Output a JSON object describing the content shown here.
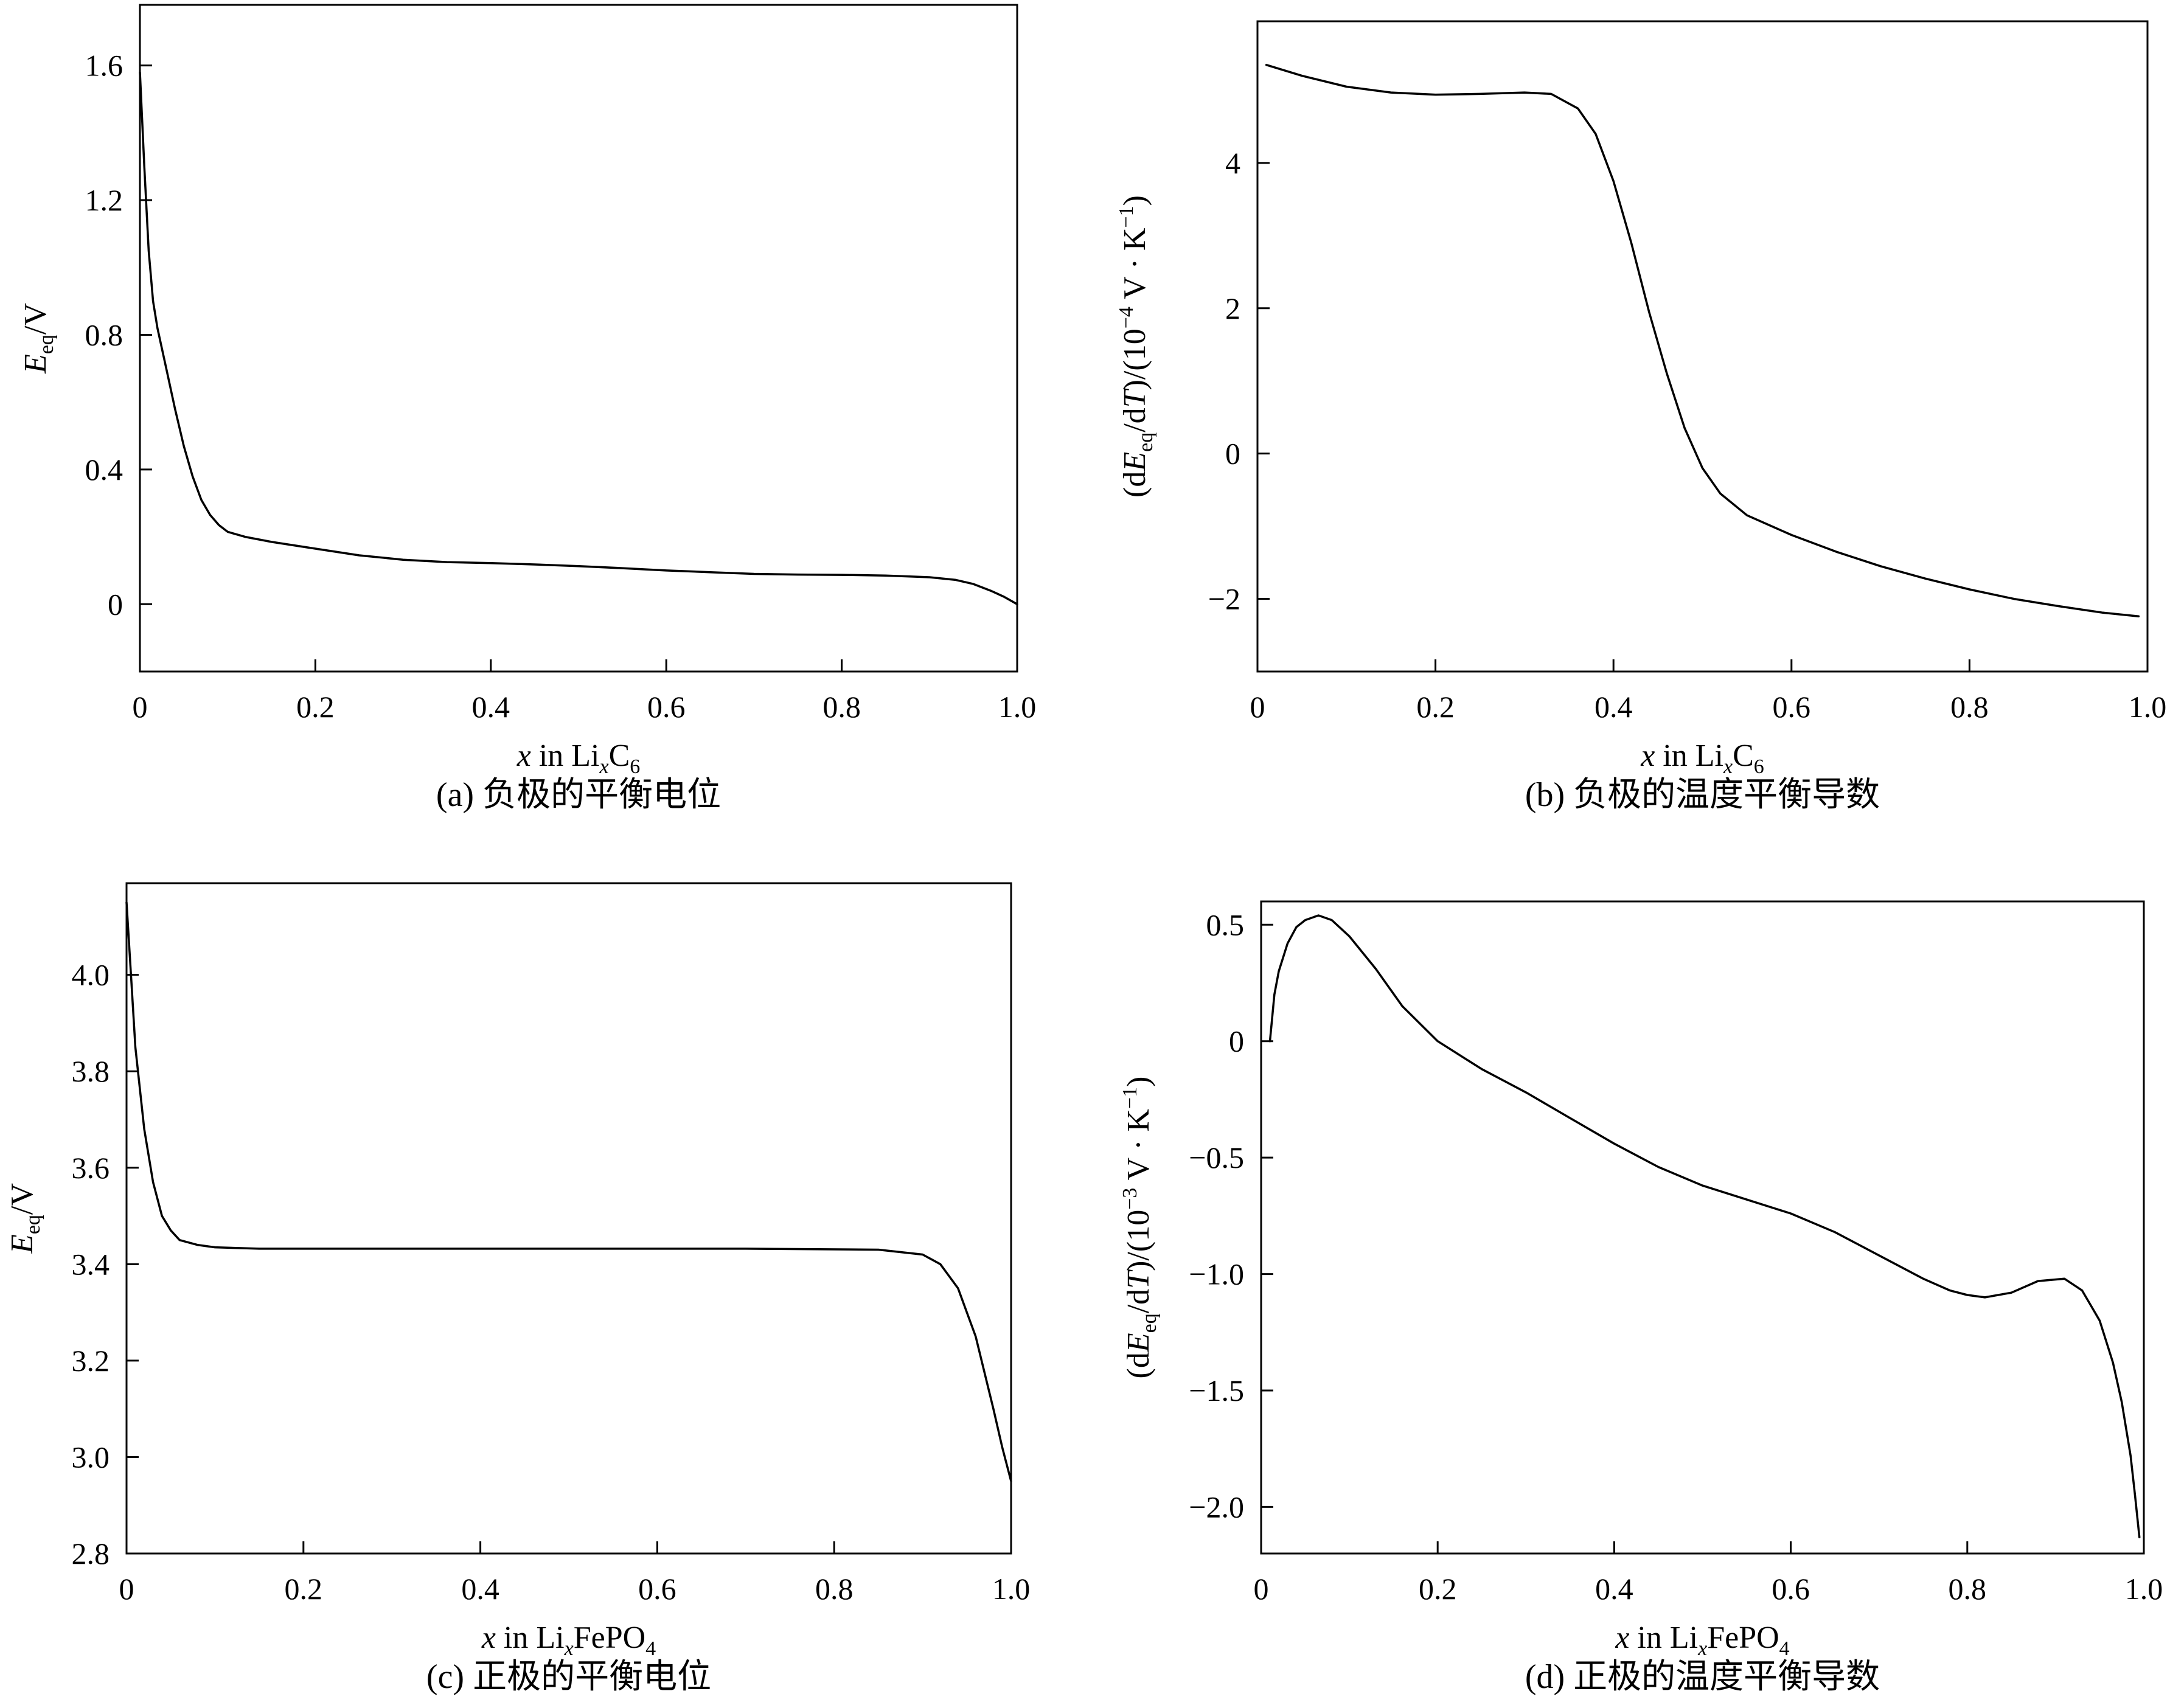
{
  "chart_data": [
    {
      "id": "a",
      "type": "line",
      "caption": "(a) 负极的平衡电位",
      "xlabel": {
        "italic": "x",
        "pre": " in Li",
        "sub": "x",
        "post": "C",
        "sub2": "6"
      },
      "ylabel": {
        "main": "E",
        "sub": "eq",
        "post": "/V"
      },
      "xlim": [
        0,
        1.0
      ],
      "ylim": [
        -0.2,
        1.78
      ],
      "xticks": [
        0,
        0.2,
        0.4,
        0.6,
        0.8,
        1.0
      ],
      "xtick_labels": [
        "0",
        "0.2",
        "0.4",
        "0.6",
        "0.8",
        "1.0"
      ],
      "yticks": [
        0,
        0.4,
        0.8,
        1.2,
        1.6
      ],
      "ytick_labels": [
        "0",
        "0.4",
        "0.8",
        "1.2",
        "1.6"
      ],
      "series": [
        {
          "x": [
            0.0,
            0.005,
            0.01,
            0.015,
            0.02,
            0.03,
            0.04,
            0.05,
            0.06,
            0.07,
            0.08,
            0.09,
            0.1,
            0.12,
            0.15,
            0.2,
            0.25,
            0.3,
            0.35,
            0.4,
            0.45,
            0.5,
            0.55,
            0.6,
            0.65,
            0.7,
            0.75,
            0.8,
            0.85,
            0.9,
            0.93,
            0.95,
            0.97,
            0.985,
            1.0
          ],
          "y": [
            1.58,
            1.3,
            1.05,
            0.9,
            0.82,
            0.7,
            0.58,
            0.47,
            0.38,
            0.31,
            0.265,
            0.235,
            0.215,
            0.2,
            0.185,
            0.165,
            0.145,
            0.132,
            0.125,
            0.122,
            0.118,
            0.113,
            0.107,
            0.1,
            0.095,
            0.09,
            0.088,
            0.087,
            0.085,
            0.08,
            0.072,
            0.06,
            0.04,
            0.022,
            0.0
          ]
        }
      ]
    },
    {
      "id": "b",
      "type": "line",
      "caption": "(b) 负极的温度平衡导数",
      "xlabel": {
        "italic": "x",
        "pre": " in Li",
        "sub": "x",
        "post": "C",
        "sub2": "6"
      },
      "ylabel": {
        "text": "(dE",
        "sub": "eq",
        "mid": "/dT)/(10",
        "sup": "−4",
        "post": " V · K",
        "sup2": "−1",
        "end": ")"
      },
      "xlim": [
        0,
        1.0
      ],
      "ylim": [
        -3.0,
        5.95
      ],
      "xticks": [
        0,
        0.2,
        0.4,
        0.6,
        0.8,
        1.0
      ],
      "xtick_labels": [
        "0",
        "0.2",
        "0.4",
        "0.6",
        "0.8",
        "1.0"
      ],
      "yticks": [
        -2,
        0,
        2,
        4
      ],
      "ytick_labels": [
        "−2",
        "0",
        "2",
        "4"
      ],
      "series": [
        {
          "x": [
            0.01,
            0.05,
            0.1,
            0.15,
            0.2,
            0.25,
            0.3,
            0.33,
            0.36,
            0.38,
            0.4,
            0.42,
            0.44,
            0.46,
            0.48,
            0.5,
            0.52,
            0.55,
            0.6,
            0.65,
            0.7,
            0.75,
            0.8,
            0.85,
            0.9,
            0.95,
            0.99
          ],
          "y": [
            5.35,
            5.2,
            5.05,
            4.97,
            4.94,
            4.95,
            4.97,
            4.95,
            4.75,
            4.4,
            3.75,
            2.9,
            1.95,
            1.1,
            0.35,
            -0.2,
            -0.55,
            -0.85,
            -1.12,
            -1.35,
            -1.55,
            -1.72,
            -1.87,
            -2.0,
            -2.1,
            -2.19,
            -2.24
          ]
        }
      ]
    },
    {
      "id": "c",
      "type": "line",
      "caption": "(c) 正极的平衡电位",
      "xlabel": {
        "italic": "x",
        "pre": " in Li",
        "sub": "x",
        "post": "FePO",
        "sub2": "4"
      },
      "ylabel": {
        "main": "E",
        "sub": "eq",
        "post": "/V"
      },
      "xlim": [
        0,
        1.0
      ],
      "ylim": [
        2.8,
        4.19
      ],
      "xticks": [
        0,
        0.2,
        0.4,
        0.6,
        0.8,
        1.0
      ],
      "xtick_labels": [
        "0",
        "0.2",
        "0.4",
        "0.6",
        "0.8",
        "1.0"
      ],
      "yticks": [
        2.8,
        3.0,
        3.2,
        3.4,
        3.6,
        3.8,
        4.0
      ],
      "ytick_labels": [
        "2.8",
        "3.0",
        "3.2",
        "3.4",
        "3.6",
        "3.8",
        "4.0"
      ],
      "series": [
        {
          "x": [
            0.0,
            0.005,
            0.01,
            0.02,
            0.03,
            0.04,
            0.05,
            0.06,
            0.08,
            0.1,
            0.15,
            0.3,
            0.5,
            0.7,
            0.85,
            0.9,
            0.92,
            0.94,
            0.96,
            0.98,
            0.99,
            1.0
          ],
          "y": [
            4.15,
            4.0,
            3.85,
            3.68,
            3.57,
            3.5,
            3.47,
            3.45,
            3.44,
            3.435,
            3.432,
            3.432,
            3.432,
            3.432,
            3.43,
            3.42,
            3.4,
            3.35,
            3.25,
            3.1,
            3.02,
            2.95
          ]
        }
      ]
    },
    {
      "id": "d",
      "type": "line",
      "caption": "(d) 正极的温度平衡导数",
      "xlabel": {
        "italic": "x",
        "pre": " in Li",
        "sub": "x",
        "post": "FePO",
        "sub2": "4"
      },
      "ylabel": {
        "text": "(dE",
        "sub": "eq",
        "mid": "/dT)/(10",
        "sup": "−3",
        "post": " V · K",
        "sup2": "−1",
        "end": ")"
      },
      "xlim": [
        0,
        1.0
      ],
      "ylim": [
        -2.2,
        0.6
      ],
      "xticks": [
        0,
        0.2,
        0.4,
        0.6,
        0.8,
        1.0
      ],
      "xtick_labels": [
        "0",
        "0.2",
        "0.4",
        "0.6",
        "0.8",
        "1.0"
      ],
      "yticks": [
        -2.0,
        -1.5,
        -1.0,
        -0.5,
        0,
        0.5
      ],
      "ytick_labels": [
        "−2.0",
        "−1.5",
        "−1.0",
        "−0.5",
        "0",
        "0.5"
      ],
      "series": [
        {
          "x": [
            0.01,
            0.015,
            0.02,
            0.03,
            0.04,
            0.05,
            0.065,
            0.08,
            0.1,
            0.13,
            0.16,
            0.2,
            0.25,
            0.3,
            0.35,
            0.4,
            0.45,
            0.5,
            0.55,
            0.6,
            0.65,
            0.7,
            0.75,
            0.78,
            0.8,
            0.82,
            0.85,
            0.88,
            0.91,
            0.93,
            0.95,
            0.965,
            0.975,
            0.985,
            0.99,
            0.995
          ],
          "y": [
            0.0,
            0.2,
            0.3,
            0.42,
            0.49,
            0.52,
            0.54,
            0.52,
            0.45,
            0.31,
            0.15,
            0.0,
            -0.12,
            -0.22,
            -0.33,
            -0.44,
            -0.54,
            -0.62,
            -0.68,
            -0.74,
            -0.82,
            -0.92,
            -1.02,
            -1.07,
            -1.09,
            -1.1,
            -1.08,
            -1.03,
            -1.02,
            -1.07,
            -1.2,
            -1.38,
            -1.55,
            -1.78,
            -1.95,
            -2.13
          ]
        }
      ]
    }
  ]
}
